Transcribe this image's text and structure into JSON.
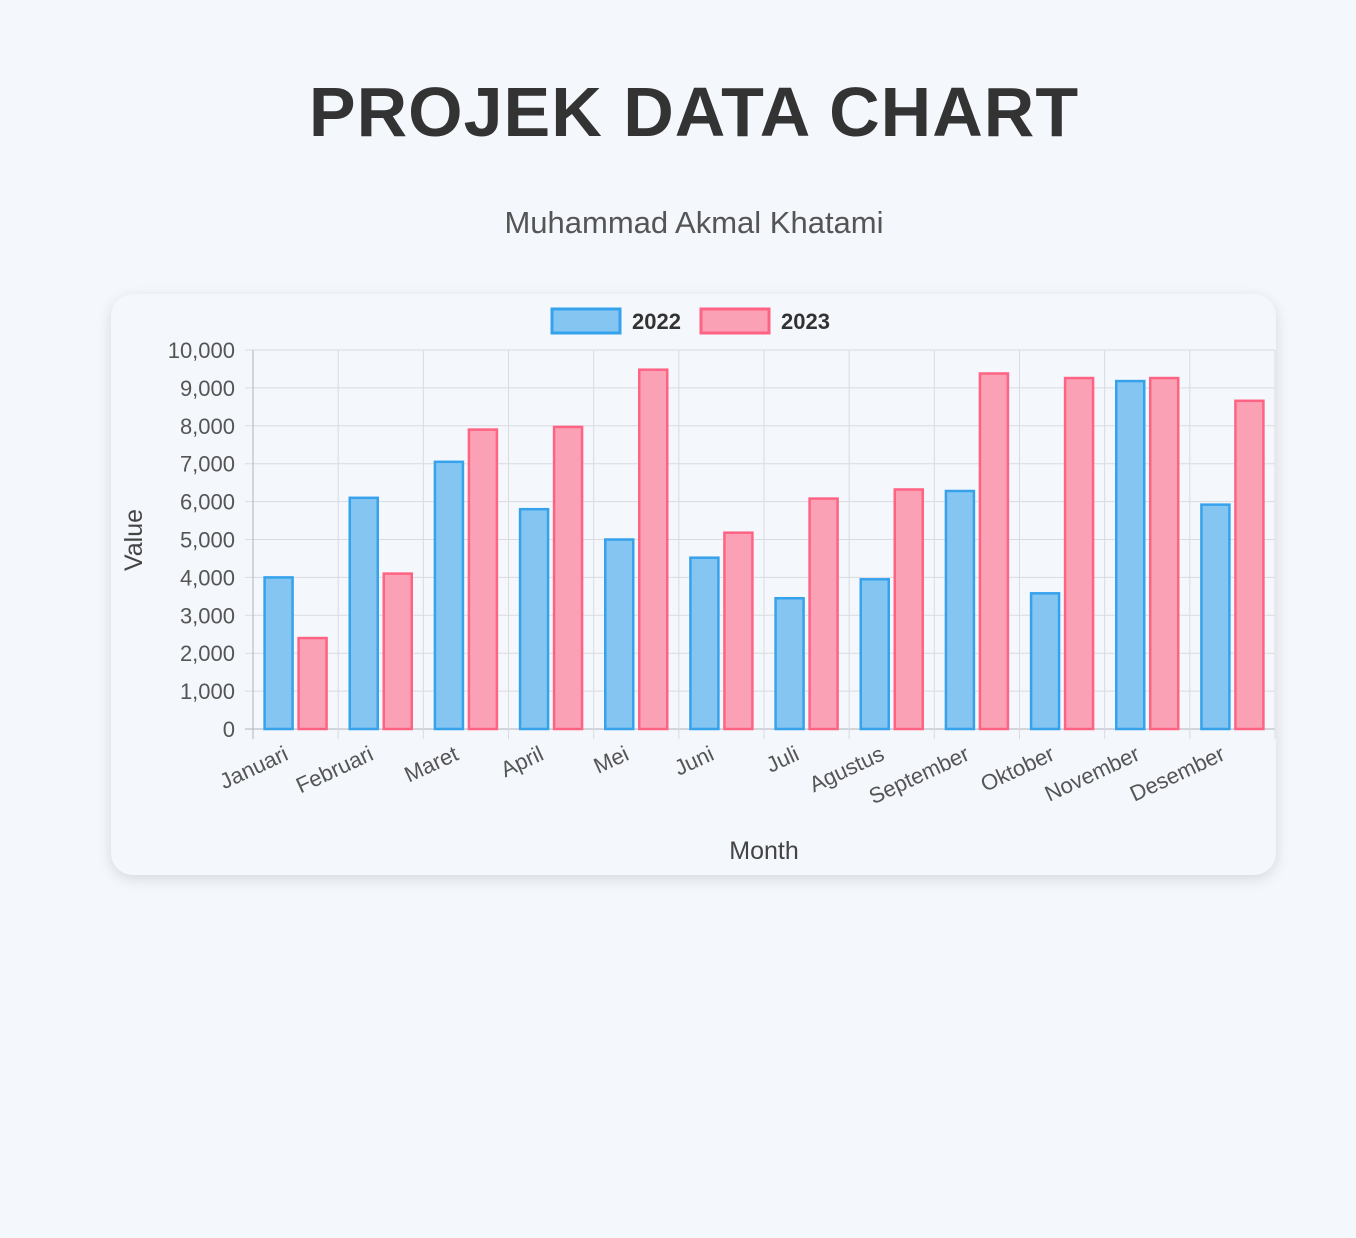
{
  "header": {
    "title": "PROJEK DATA CHART",
    "subtitle": "Muhammad Akmal Khatami"
  },
  "chart_data": {
    "type": "bar",
    "title": "",
    "xlabel": "Month",
    "ylabel": "Value",
    "ylim": [
      0,
      10000
    ],
    "y_ticks": [
      "0",
      "1,000",
      "2,000",
      "3,000",
      "4,000",
      "5,000",
      "6,000",
      "7,000",
      "8,000",
      "9,000",
      "10,000"
    ],
    "grid": true,
    "legend_position": "top-center",
    "categories": [
      "Januari",
      "Februari",
      "Maret",
      "April",
      "Mei",
      "Juni",
      "Juli",
      "Agustus",
      "September",
      "Oktober",
      "November",
      "Desember"
    ],
    "series": [
      {
        "name": "2022",
        "fill": "#84c5f2",
        "stroke": "#36a2eb",
        "values": [
          4000,
          6100,
          7050,
          5800,
          5000,
          4520,
          3450,
          3950,
          6280,
          3580,
          9180,
          5920
        ]
      },
      {
        "name": "2023",
        "fill": "#fba1b5",
        "stroke": "#ff6384",
        "values": [
          2400,
          4100,
          7900,
          7970,
          9480,
          5180,
          6080,
          6320,
          9380,
          9260,
          9260,
          8660
        ]
      }
    ]
  }
}
